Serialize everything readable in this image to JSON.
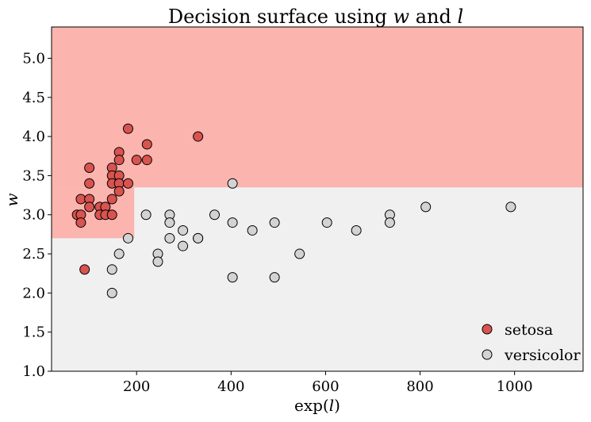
{
  "chart_data": {
    "type": "scatter",
    "title_prefix": "Decision surface using ",
    "title_var1": "w",
    "title_mid": " and ",
    "title_var2": "l",
    "xlabel_prefix": "exp(",
    "xlabel_var": "l",
    "xlabel_suffix": ")",
    "ylabel": "w",
    "xlim": [
      20,
      1145
    ],
    "ylim": [
      1.0,
      5.4
    ],
    "xticks": [
      200,
      400,
      600,
      800,
      1000
    ],
    "xtick_labels": [
      "200",
      "400",
      "600",
      "800",
      "1000"
    ],
    "yticks": [
      1.0,
      1.5,
      2.0,
      2.5,
      3.0,
      3.5,
      4.0,
      4.5,
      5.0
    ],
    "ytick_labels": [
      "1.0",
      "1.5",
      "2.0",
      "2.5",
      "3.0",
      "3.5",
      "4.0",
      "4.5",
      "5.0"
    ],
    "grid": false,
    "legend_position": "bottom-right",
    "decision_regions": [
      {
        "class": "versicolor",
        "color": "#f0f0f0",
        "x": [
          20,
          1145
        ],
        "y": [
          1.0,
          5.4
        ]
      },
      {
        "class": "setosa",
        "color": "#fbb4ae",
        "x": [
          20,
          1145
        ],
        "y": [
          3.35,
          5.4
        ]
      },
      {
        "class": "setosa",
        "color": "#fbb4ae",
        "x": [
          20,
          195
        ],
        "y": [
          2.7,
          3.35
        ]
      }
    ],
    "series": [
      {
        "name": "setosa",
        "color": "#d9534f",
        "points": [
          [
            90,
            2.3
          ],
          [
            182,
            4.1
          ],
          [
            330,
            4.0
          ],
          [
            222,
            3.9
          ],
          [
            163,
            3.8
          ],
          [
            163,
            3.7
          ],
          [
            200,
            3.7
          ],
          [
            222,
            3.7
          ],
          [
            100,
            3.6
          ],
          [
            148,
            3.6
          ],
          [
            148,
            3.5
          ],
          [
            163,
            3.5
          ],
          [
            100,
            3.4
          ],
          [
            148,
            3.4
          ],
          [
            163,
            3.4
          ],
          [
            182,
            3.4
          ],
          [
            163,
            3.3
          ],
          [
            82,
            3.2
          ],
          [
            100,
            3.2
          ],
          [
            148,
            3.2
          ],
          [
            100,
            3.1
          ],
          [
            122,
            3.1
          ],
          [
            134,
            3.1
          ],
          [
            74,
            3.0
          ],
          [
            82,
            3.0
          ],
          [
            122,
            3.0
          ],
          [
            134,
            3.0
          ],
          [
            148,
            3.0
          ],
          [
            82,
            2.9
          ]
        ]
      },
      {
        "name": "versicolor",
        "color": "#d3d3d3",
        "points": [
          [
            403,
            3.4
          ],
          [
            365,
            3.0
          ],
          [
            812,
            3.1
          ],
          [
            992,
            3.1
          ],
          [
            220,
            3.0
          ],
          [
            270,
            3.0
          ],
          [
            736,
            3.0
          ],
          [
            270,
            2.9
          ],
          [
            403,
            2.9
          ],
          [
            492,
            2.9
          ],
          [
            603,
            2.9
          ],
          [
            736,
            2.9
          ],
          [
            298,
            2.8
          ],
          [
            445,
            2.8
          ],
          [
            665,
            2.8
          ],
          [
            182,
            2.7
          ],
          [
            270,
            2.7
          ],
          [
            330,
            2.7
          ],
          [
            330,
            2.7
          ],
          [
            298,
            2.6
          ],
          [
            163,
            2.5
          ],
          [
            245,
            2.5
          ],
          [
            545,
            2.5
          ],
          [
            245,
            2.4
          ],
          [
            148,
            2.3
          ],
          [
            403,
            2.2
          ],
          [
            492,
            2.2
          ],
          [
            148,
            2.0
          ]
        ]
      }
    ]
  }
}
